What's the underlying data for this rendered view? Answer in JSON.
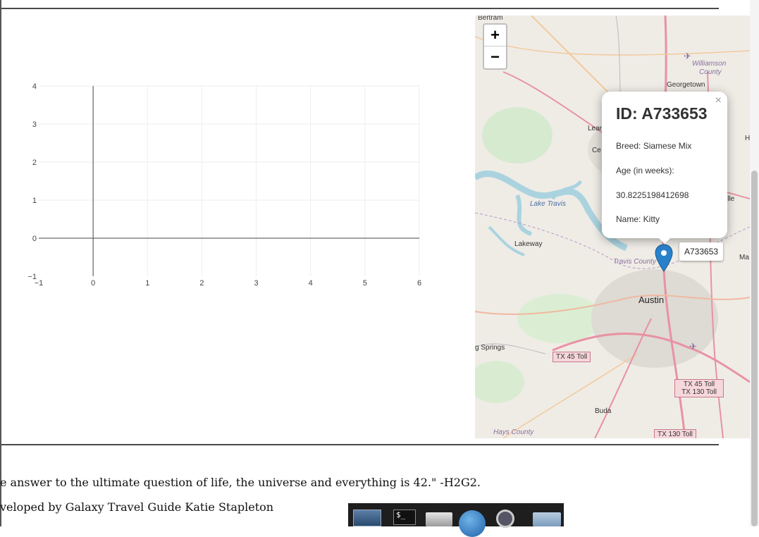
{
  "chart_data": {
    "type": "scatter",
    "x": [],
    "y": [],
    "xlim": [
      -1,
      6
    ],
    "ylim": [
      -1,
      4
    ],
    "xticks": [
      "−1",
      "0",
      "1",
      "2",
      "3",
      "4",
      "5",
      "6"
    ],
    "yticks": [
      "−1",
      "0",
      "1",
      "2",
      "3",
      "4"
    ],
    "grid": true
  },
  "map": {
    "zoom_in": "+",
    "zoom_out": "−",
    "popup": {
      "title": "ID: A733653",
      "breed": "Breed: Siamese Mix",
      "age_label": "Age (in weeks):",
      "age_value": "30.8225198412698",
      "name": "Name: Kitty",
      "close": "×"
    },
    "tooltip": "A733653",
    "marker_color": "#2a81cb",
    "labels": {
      "bertram": "Bertram",
      "williamson": "Williamson",
      "county": "County",
      "georgetown": "Georgetown",
      "leander": "Lear",
      "cedar_park": "Ce",
      "lake_travis": "Lake Travis",
      "lakeway": "Lakeway",
      "travis_county": "Travis County",
      "austin": "Austin",
      "springs": "g Springs",
      "buda": "Buda",
      "hays_county": "Hays County",
      "ille": "ille",
      "ma": "Ma",
      "h": "H",
      "tx45": "TX 45 Toll",
      "tx45_130_a": "TX 45 Toll",
      "tx45_130_b": "TX 130 Toll",
      "tx130": "TX 130 Toll"
    }
  },
  "footer": {
    "quote": "e answer to the ultimate question of life, the universe and everything is 42.\" -H2G2.",
    "credit": "veloped by Galaxy Travel Guide Katie Stapleton"
  },
  "dock": {
    "icons": [
      "desktop-icon",
      "terminal-icon",
      "files-icon",
      "browser-globe-icon",
      "search-magnifier-icon",
      "folder-icon"
    ],
    "terminal_glyph": "$_"
  }
}
